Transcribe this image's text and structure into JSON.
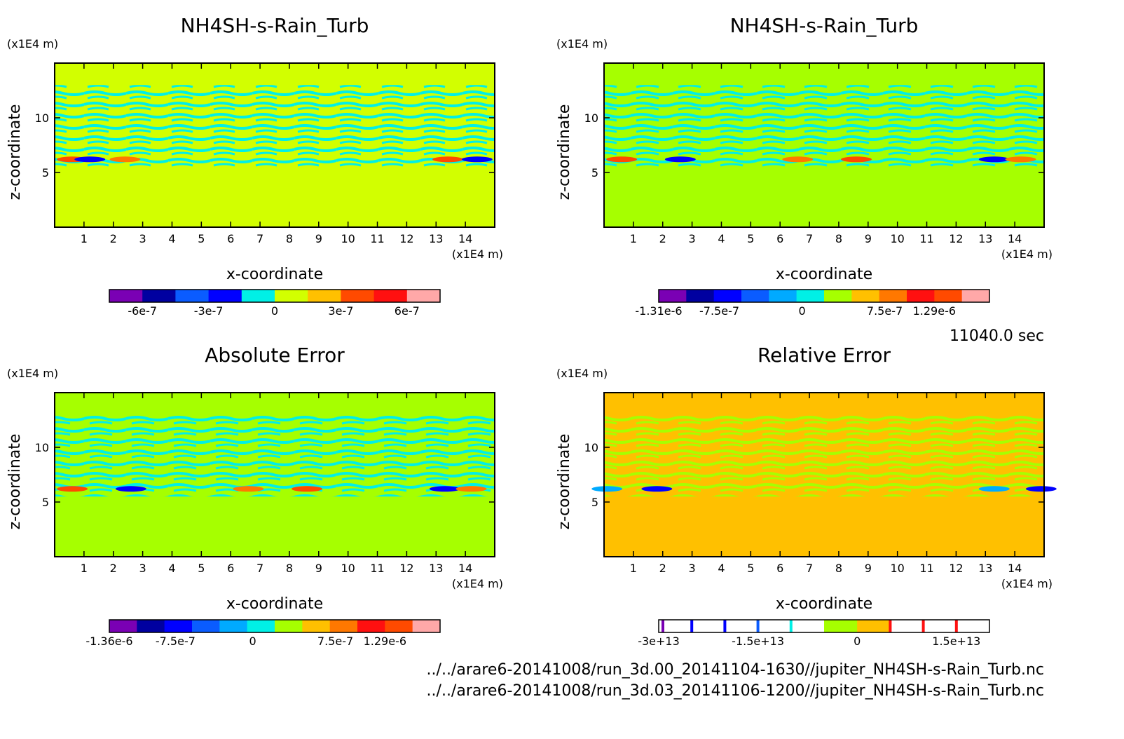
{
  "colors": {
    "purple": "#7a00b4",
    "dark_blue": "#0000a0",
    "blue": "#0000ff",
    "mid_blue": "#0a5cff",
    "sky": "#00aaff",
    "cyan": "#00f0e6",
    "lime": "#a6ff00",
    "yellow_green": "#d2ff00",
    "orange_yellow": "#ffc000",
    "orange": "#ff7800",
    "red_orange": "#ff4a00",
    "red": "#ff1010",
    "pink": "#ffa8a8"
  },
  "time_label": "11040.0 sec",
  "files": [
    "../../arare6-20141008/run_3d.00_20141104-1630//jupiter_NH4SH-s-Rain_Turb.nc",
    "../../arare6-20141008/run_3d.03_20141106-1200//jupiter_NH4SH-s-Rain_Turb.nc"
  ],
  "chart_data": [
    {
      "type": "heatmap",
      "title": "NH4SH-s-Rain_Turb",
      "xlabel": "x-coordinate",
      "ylabel": "z-coordinate",
      "x_unit": "(x1E4 m)",
      "y_unit": "(x1E4 m)",
      "xlim": [
        0,
        15
      ],
      "ylim": [
        0,
        15
      ],
      "x_ticks": [
        1,
        2,
        3,
        4,
        5,
        6,
        7,
        8,
        9,
        10,
        11,
        12,
        13,
        14
      ],
      "y_ticks": [
        5,
        10
      ],
      "background": "yellow_green",
      "colorbar": {
        "colors": [
          "purple",
          "dark_blue",
          "mid_blue",
          "blue",
          "cyan",
          "yellow_green",
          "orange_yellow",
          "red_orange",
          "red",
          "pink"
        ],
        "labels": [
          "-6e-7",
          "-3e-7",
          "0",
          "3e-7",
          "6e-7"
        ],
        "label_positions": [
          1,
          3,
          5,
          7,
          9
        ]
      }
    },
    {
      "type": "heatmap",
      "title": "NH4SH-s-Rain_Turb",
      "xlabel": "x-coordinate",
      "ylabel": "z-coordinate",
      "x_unit": "(x1E4 m)",
      "y_unit": "(x1E4 m)",
      "xlim": [
        0,
        15
      ],
      "ylim": [
        0,
        15
      ],
      "x_ticks": [
        1,
        2,
        3,
        4,
        5,
        6,
        7,
        8,
        9,
        10,
        11,
        12,
        13,
        14
      ],
      "y_ticks": [
        5,
        10
      ],
      "background": "lime",
      "colorbar": {
        "colors": [
          "purple",
          "dark_blue",
          "blue",
          "mid_blue",
          "sky",
          "cyan",
          "lime",
          "orange_yellow",
          "orange",
          "red",
          "red_orange",
          "pink"
        ],
        "labels": [
          "-1.31e-6",
          "-7.5e-7",
          "0",
          "7.5e-7",
          "1.29e-6"
        ],
        "label_positions": [
          0,
          2.2,
          5.2,
          8.2,
          10
        ]
      }
    },
    {
      "type": "heatmap",
      "title": "Absolute Error",
      "xlabel": "x-coordinate",
      "ylabel": "z-coordinate",
      "x_unit": "(x1E4 m)",
      "y_unit": "(x1E4 m)",
      "xlim": [
        0,
        15
      ],
      "ylim": [
        0,
        15
      ],
      "x_ticks": [
        1,
        2,
        3,
        4,
        5,
        6,
        7,
        8,
        9,
        10,
        11,
        12,
        13,
        14
      ],
      "y_ticks": [
        5,
        10
      ],
      "background": "lime",
      "colorbar": {
        "colors": [
          "purple",
          "dark_blue",
          "blue",
          "mid_blue",
          "sky",
          "cyan",
          "lime",
          "orange_yellow",
          "orange",
          "red",
          "red_orange",
          "pink"
        ],
        "labels": [
          "-1.36e-6",
          "-7.5e-7",
          "0",
          "7.5e-7",
          "1.29e-6"
        ],
        "label_positions": [
          0,
          2.4,
          5.2,
          8.2,
          10
        ]
      }
    },
    {
      "type": "heatmap",
      "title": "Relative Error",
      "xlabel": "x-coordinate",
      "ylabel": "z-coordinate",
      "x_unit": "(x1E4 m)",
      "y_unit": "(x1E4 m)",
      "xlim": [
        0,
        15
      ],
      "ylim": [
        0,
        15
      ],
      "x_ticks": [
        1,
        2,
        3,
        4,
        5,
        6,
        7,
        8,
        9,
        10,
        11,
        12,
        13,
        14
      ],
      "y_ticks": [
        5,
        10
      ],
      "background": "orange_yellow",
      "colorbar": {
        "colors": [
          "white",
          "white",
          "white",
          "white",
          "white",
          "lime",
          "orange_yellow",
          "white",
          "white",
          "white"
        ],
        "separators": [
          "purple",
          "blue",
          "blue",
          "mid_blue",
          "cyan",
          "",
          "",
          "red",
          "red",
          "red"
        ],
        "labels": [
          "-3e+13",
          "-1.5e+13",
          "0",
          "1.5e+13"
        ],
        "label_positions": [
          0,
          3,
          6,
          9
        ]
      }
    }
  ]
}
